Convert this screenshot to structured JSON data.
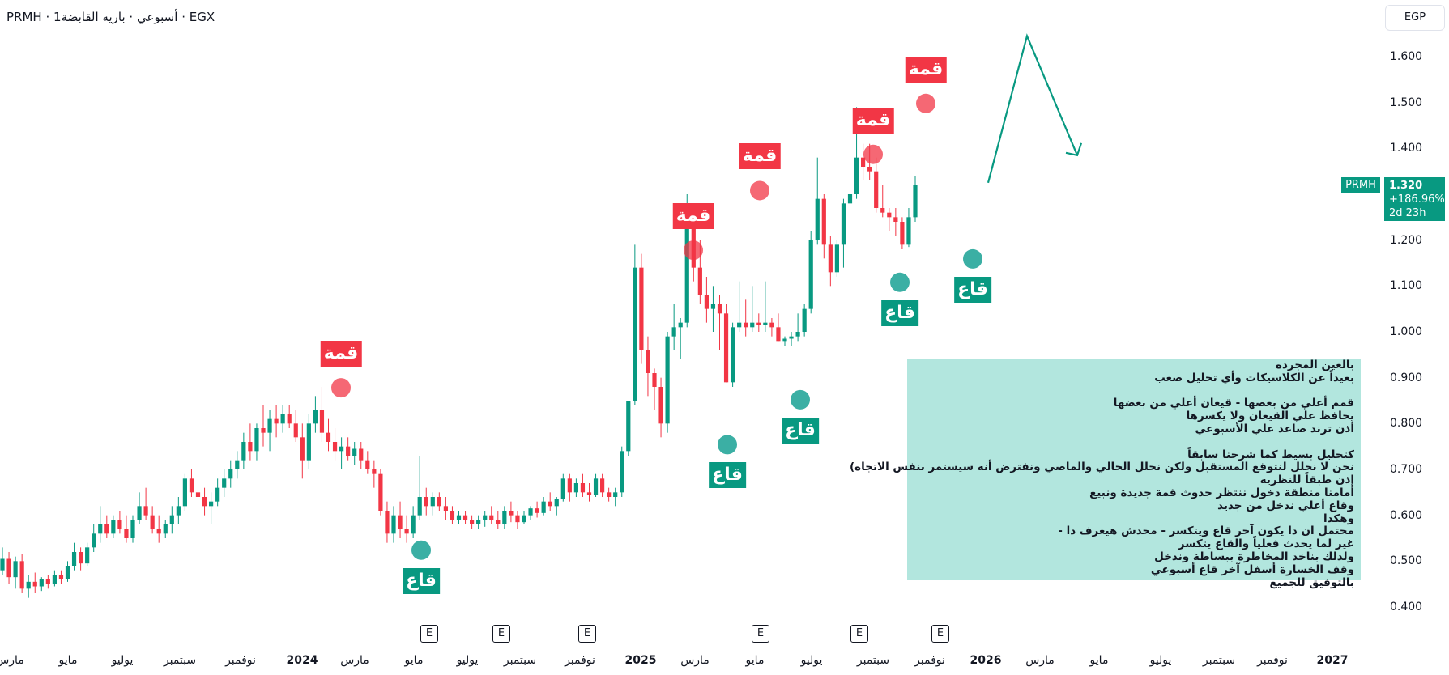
{
  "title": "PRMH · 1أسبوعي · باريه القابضة · EGX",
  "currency": "EGP",
  "ticker_tag": "PRMH",
  "price_box": {
    "price": "1.320",
    "change": "+186.96%",
    "countdown": "2d 23h"
  },
  "earnings_label": "E",
  "earnings_x": [
    530,
    619,
    725,
    939,
    1061,
    1161
  ],
  "colors": {
    "up": "#089981",
    "down": "#f23645",
    "bottom_marker": "#26a69a",
    "top_marker": "#f23645",
    "arrow": "#089981"
  },
  "annotations": {
    "tops": [
      {
        "label": "قمة",
        "x": 421,
        "y": 0.878
      },
      {
        "label": "قمة",
        "x": 856,
        "y": 1.178
      },
      {
        "label": "قمة",
        "x": 938,
        "y": 1.308
      },
      {
        "label": "قمة",
        "x": 1078,
        "y": 1.387
      },
      {
        "label": "قمة",
        "x": 1143,
        "y": 1.498
      }
    ],
    "bottoms": [
      {
        "label": "قاع",
        "x": 520,
        "y": 0.524
      },
      {
        "label": "قاع",
        "x": 898,
        "y": 0.754
      },
      {
        "label": "قاع",
        "x": 988,
        "y": 0.852
      },
      {
        "label": "قاع",
        "x": 1111,
        "y": 1.108
      },
      {
        "label": "قاع",
        "x": 1201,
        "y": 1.159
      }
    ],
    "projection": [
      [
        1220,
        1.325
      ],
      [
        1268,
        1.645
      ],
      [
        1330,
        1.385
      ]
    ]
  },
  "note": {
    "lines": [
      "بالعين المجرده",
      "بعيداً عن الكلاسيكات وأي تحليل صعب",
      "",
      "قمم أعلي من بعضها - قيعان أعلي من بعضها",
      "يحافظ علي القيعان ولا يكسرها",
      "أذن ترند صاعد علي الأسبوعي",
      "",
      "كتحليل بسيط كما شرحنا سابقاً",
      "نحن لا نحلل لنتوقع المستقبل ولكن نحلل الحالي والماضي ونفترض أنه سيستمر بنفس الاتجاه)",
      "إذن طبقاً للنظرية",
      "أمامنا منطقة دخول ننتظر حدوث قمة جديدة ونبيع",
      "وقاع أعلي ندخل من جديد",
      "وهكذا",
      "محتمل ان دا يكون آخر قاع ويتكسر - محدش هيعرف دا -",
      "غير لما يحدث فعلياً والقاع يتكسر",
      "ولذلك بناخد المخاطرة ببساطة وندخل",
      "وقف الخسارة أسفل آخر قاع أسبوعي",
      "بالتوفيق للجميع"
    ]
  },
  "chart_data": {
    "type": "candlestick",
    "title": "PRMH · 1أسبوعي · باريه القابضة · EGX",
    "interval": "weekly",
    "y_axis": {
      "ticks": [
        "1.600",
        "1.500",
        "1.400",
        "1.300",
        "1.200",
        "1.100",
        "1.000",
        "0.900",
        "0.800",
        "0.700",
        "0.600",
        "0.500",
        "0.400"
      ],
      "range": [
        0.37,
        1.69
      ]
    },
    "x_axis": {
      "labels": [
        {
          "text": "مارس",
          "x": 12
        },
        {
          "text": "مايو",
          "x": 84
        },
        {
          "text": "يوليو",
          "x": 151
        },
        {
          "text": "سبتمبر",
          "x": 222
        },
        {
          "text": "نوفمبر",
          "x": 297
        },
        {
          "text": "2024",
          "x": 373,
          "year": true
        },
        {
          "text": "مارس",
          "x": 438
        },
        {
          "text": "مايو",
          "x": 511
        },
        {
          "text": "يوليو",
          "x": 577
        },
        {
          "text": "سبتمبر",
          "x": 642
        },
        {
          "text": "نوفمبر",
          "x": 716
        },
        {
          "text": "2025",
          "x": 791,
          "year": true
        },
        {
          "text": "مارس",
          "x": 858
        },
        {
          "text": "مايو",
          "x": 932
        },
        {
          "text": "يوليو",
          "x": 1002
        },
        {
          "text": "سبتمبر",
          "x": 1078
        },
        {
          "text": "نوفمبر",
          "x": 1148
        },
        {
          "text": "2026",
          "x": 1217,
          "year": true
        },
        {
          "text": "مارس",
          "x": 1284
        },
        {
          "text": "مايو",
          "x": 1357
        },
        {
          "text": "يوليو",
          "x": 1433
        },
        {
          "text": "سبتمبر",
          "x": 1505
        },
        {
          "text": "نوفمبر",
          "x": 1571
        },
        {
          "text": "2027",
          "x": 1645,
          "year": true
        }
      ]
    },
    "x_start": 3,
    "x_step": 8.05,
    "candles": [
      [
        0.48,
        0.53,
        0.47,
        0.505
      ],
      [
        0.505,
        0.52,
        0.45,
        0.465
      ],
      [
        0.465,
        0.51,
        0.44,
        0.5
      ],
      [
        0.5,
        0.515,
        0.43,
        0.44
      ],
      [
        0.44,
        0.47,
        0.42,
        0.455
      ],
      [
        0.455,
        0.475,
        0.43,
        0.445
      ],
      [
        0.445,
        0.465,
        0.435,
        0.46
      ],
      [
        0.46,
        0.47,
        0.44,
        0.45
      ],
      [
        0.45,
        0.48,
        0.445,
        0.47
      ],
      [
        0.47,
        0.48,
        0.45,
        0.46
      ],
      [
        0.46,
        0.5,
        0.455,
        0.49
      ],
      [
        0.49,
        0.54,
        0.48,
        0.52
      ],
      [
        0.52,
        0.53,
        0.48,
        0.495
      ],
      [
        0.495,
        0.54,
        0.49,
        0.53
      ],
      [
        0.53,
        0.58,
        0.52,
        0.56
      ],
      [
        0.56,
        0.62,
        0.54,
        0.58
      ],
      [
        0.58,
        0.6,
        0.55,
        0.56
      ],
      [
        0.56,
        0.6,
        0.55,
        0.59
      ],
      [
        0.59,
        0.61,
        0.56,
        0.57
      ],
      [
        0.57,
        0.6,
        0.54,
        0.55
      ],
      [
        0.55,
        0.6,
        0.54,
        0.59
      ],
      [
        0.59,
        0.65,
        0.58,
        0.62
      ],
      [
        0.62,
        0.66,
        0.59,
        0.6
      ],
      [
        0.6,
        0.62,
        0.56,
        0.57
      ],
      [
        0.57,
        0.6,
        0.54,
        0.56
      ],
      [
        0.56,
        0.59,
        0.55,
        0.58
      ],
      [
        0.58,
        0.62,
        0.56,
        0.6
      ],
      [
        0.6,
        0.64,
        0.58,
        0.62
      ],
      [
        0.62,
        0.69,
        0.61,
        0.68
      ],
      [
        0.68,
        0.7,
        0.64,
        0.65
      ],
      [
        0.65,
        0.69,
        0.62,
        0.64
      ],
      [
        0.64,
        0.66,
        0.6,
        0.62
      ],
      [
        0.62,
        0.65,
        0.58,
        0.63
      ],
      [
        0.63,
        0.68,
        0.62,
        0.66
      ],
      [
        0.66,
        0.7,
        0.64,
        0.68
      ],
      [
        0.68,
        0.72,
        0.66,
        0.7
      ],
      [
        0.7,
        0.74,
        0.68,
        0.72
      ],
      [
        0.72,
        0.78,
        0.7,
        0.76
      ],
      [
        0.76,
        0.8,
        0.72,
        0.74
      ],
      [
        0.74,
        0.8,
        0.72,
        0.79
      ],
      [
        0.79,
        0.84,
        0.75,
        0.78
      ],
      [
        0.78,
        0.83,
        0.74,
        0.81
      ],
      [
        0.81,
        0.84,
        0.77,
        0.8
      ],
      [
        0.8,
        0.84,
        0.78,
        0.82
      ],
      [
        0.82,
        0.84,
        0.79,
        0.8
      ],
      [
        0.8,
        0.83,
        0.76,
        0.77
      ],
      [
        0.77,
        0.8,
        0.68,
        0.72
      ],
      [
        0.72,
        0.82,
        0.7,
        0.8
      ],
      [
        0.8,
        0.86,
        0.78,
        0.83
      ],
      [
        0.83,
        0.88,
        0.76,
        0.78
      ],
      [
        0.78,
        0.81,
        0.74,
        0.76
      ],
      [
        0.76,
        0.79,
        0.72,
        0.74
      ],
      [
        0.74,
        0.77,
        0.7,
        0.75
      ],
      [
        0.75,
        0.77,
        0.72,
        0.73
      ],
      [
        0.73,
        0.76,
        0.71,
        0.745
      ],
      [
        0.745,
        0.76,
        0.7,
        0.72
      ],
      [
        0.72,
        0.74,
        0.69,
        0.7
      ],
      [
        0.7,
        0.72,
        0.66,
        0.69
      ],
      [
        0.69,
        0.7,
        0.6,
        0.61
      ],
      [
        0.61,
        0.63,
        0.54,
        0.56
      ],
      [
        0.56,
        0.62,
        0.54,
        0.6
      ],
      [
        0.6,
        0.63,
        0.55,
        0.57
      ],
      [
        0.57,
        0.6,
        0.54,
        0.56
      ],
      [
        0.56,
        0.62,
        0.55,
        0.6
      ],
      [
        0.6,
        0.73,
        0.59,
        0.64
      ],
      [
        0.64,
        0.66,
        0.6,
        0.62
      ],
      [
        0.62,
        0.65,
        0.6,
        0.64
      ],
      [
        0.64,
        0.65,
        0.61,
        0.62
      ],
      [
        0.62,
        0.64,
        0.59,
        0.61
      ],
      [
        0.61,
        0.62,
        0.58,
        0.59
      ],
      [
        0.59,
        0.61,
        0.58,
        0.6
      ],
      [
        0.6,
        0.61,
        0.58,
        0.59
      ],
      [
        0.59,
        0.6,
        0.57,
        0.58
      ],
      [
        0.58,
        0.6,
        0.57,
        0.59
      ],
      [
        0.59,
        0.61,
        0.575,
        0.6
      ],
      [
        0.6,
        0.62,
        0.58,
        0.59
      ],
      [
        0.59,
        0.61,
        0.57,
        0.58
      ],
      [
        0.58,
        0.62,
        0.57,
        0.61
      ],
      [
        0.61,
        0.63,
        0.585,
        0.6
      ],
      [
        0.6,
        0.61,
        0.57,
        0.585
      ],
      [
        0.585,
        0.61,
        0.58,
        0.6
      ],
      [
        0.6,
        0.62,
        0.59,
        0.615
      ],
      [
        0.615,
        0.63,
        0.595,
        0.605
      ],
      [
        0.605,
        0.64,
        0.6,
        0.63
      ],
      [
        0.63,
        0.65,
        0.61,
        0.62
      ],
      [
        0.62,
        0.64,
        0.6,
        0.635
      ],
      [
        0.635,
        0.69,
        0.63,
        0.68
      ],
      [
        0.68,
        0.69,
        0.63,
        0.65
      ],
      [
        0.65,
        0.68,
        0.64,
        0.67
      ],
      [
        0.67,
        0.69,
        0.64,
        0.65
      ],
      [
        0.65,
        0.67,
        0.63,
        0.645
      ],
      [
        0.645,
        0.69,
        0.64,
        0.68
      ],
      [
        0.68,
        0.69,
        0.64,
        0.65
      ],
      [
        0.65,
        0.66,
        0.63,
        0.64
      ],
      [
        0.64,
        0.66,
        0.62,
        0.65
      ],
      [
        0.65,
        0.75,
        0.64,
        0.74
      ],
      [
        0.74,
        0.85,
        0.73,
        0.85
      ],
      [
        0.85,
        1.19,
        0.84,
        1.14
      ],
      [
        1.14,
        1.17,
        0.93,
        0.96
      ],
      [
        0.96,
        0.99,
        0.86,
        0.91
      ],
      [
        0.91,
        0.92,
        0.83,
        0.88
      ],
      [
        0.88,
        0.9,
        0.77,
        0.8
      ],
      [
        0.8,
        1.0,
        0.78,
        0.99
      ],
      [
        0.99,
        1.06,
        0.96,
        1.01
      ],
      [
        1.01,
        1.03,
        0.94,
        1.02
      ],
      [
        1.02,
        1.3,
        1.01,
        1.25
      ],
      [
        1.25,
        1.27,
        1.11,
        1.14
      ],
      [
        1.14,
        1.2,
        1.06,
        1.08
      ],
      [
        1.08,
        1.12,
        1.02,
        1.05
      ],
      [
        1.05,
        1.1,
        1.0,
        1.06
      ],
      [
        1.06,
        1.08,
        0.96,
        1.04
      ],
      [
        1.04,
        1.06,
        0.89,
        0.89
      ],
      [
        0.89,
        1.02,
        0.88,
        1.01
      ],
      [
        1.01,
        1.11,
        1.0,
        1.02
      ],
      [
        1.02,
        1.07,
        0.99,
        1.01
      ],
      [
        1.01,
        1.1,
        1.0,
        1.02
      ],
      [
        1.02,
        1.04,
        1.0,
        1.015
      ],
      [
        1.015,
        1.11,
        1.0,
        1.02
      ],
      [
        1.02,
        1.03,
        0.99,
        1.01
      ],
      [
        1.01,
        1.04,
        0.98,
        0.98
      ],
      [
        0.98,
        0.99,
        0.97,
        0.985
      ],
      [
        0.985,
        1.0,
        0.97,
        0.99
      ],
      [
        0.99,
        1.04,
        0.98,
        1.0
      ],
      [
        1.0,
        1.06,
        0.99,
        1.05
      ],
      [
        1.05,
        1.22,
        1.04,
        1.2
      ],
      [
        1.2,
        1.38,
        1.19,
        1.29
      ],
      [
        1.29,
        1.3,
        1.16,
        1.19
      ],
      [
        1.19,
        1.21,
        1.1,
        1.13
      ],
      [
        1.13,
        1.2,
        1.12,
        1.19
      ],
      [
        1.19,
        1.29,
        1.14,
        1.28
      ],
      [
        1.28,
        1.33,
        1.27,
        1.3
      ],
      [
        1.3,
        1.49,
        1.29,
        1.38
      ],
      [
        1.38,
        1.41,
        1.33,
        1.36
      ],
      [
        1.36,
        1.41,
        1.33,
        1.35
      ],
      [
        1.35,
        1.38,
        1.26,
        1.27
      ],
      [
        1.27,
        1.32,
        1.25,
        1.26
      ],
      [
        1.26,
        1.27,
        1.22,
        1.25
      ],
      [
        1.25,
        1.27,
        1.21,
        1.24
      ],
      [
        1.24,
        1.25,
        1.18,
        1.19
      ],
      [
        1.19,
        1.27,
        1.185,
        1.25
      ],
      [
        1.25,
        1.34,
        1.24,
        1.32
      ]
    ]
  }
}
